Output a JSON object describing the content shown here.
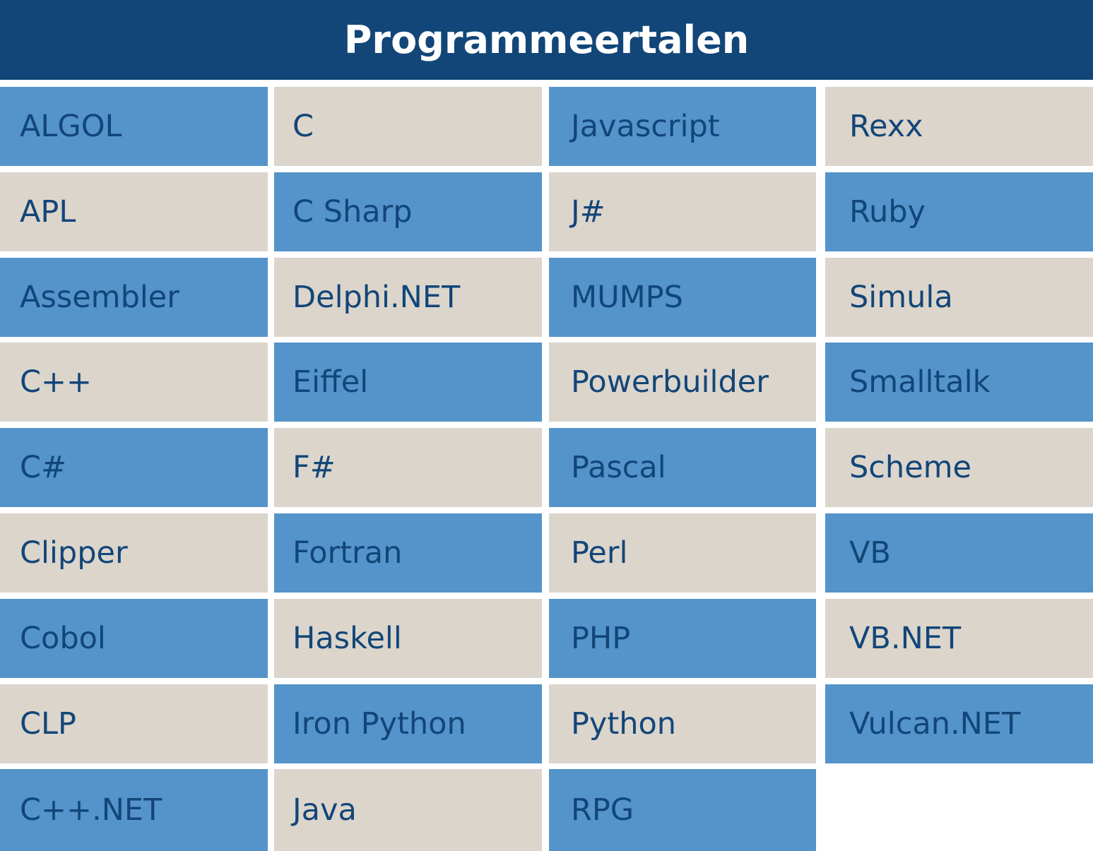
{
  "title": "Programmeertalen",
  "colors": {
    "header": "#124678",
    "blue": "#5494ca",
    "beige": "#dcd5cc",
    "text": "#124678"
  },
  "columns": [
    [
      "ALGOL",
      "APL",
      "Assembler",
      "C++",
      "C#",
      "Clipper",
      "Cobol",
      "CLP",
      "C++.NET"
    ],
    [
      "C",
      "C Sharp",
      "Delphi.NET",
      "Eiffel",
      "F#",
      "Fortran",
      "Haskell",
      "Iron Python",
      "Java"
    ],
    [
      "Javascript",
      "J#",
      "MUMPS",
      "Powerbuilder",
      "Pascal",
      "Perl",
      "PHP",
      "Python",
      "RPG"
    ],
    [
      "Rexx",
      "Ruby",
      "Simula",
      "Smalltalk",
      "Scheme",
      "VB",
      "VB.NET",
      "Vulcan.NET"
    ]
  ]
}
